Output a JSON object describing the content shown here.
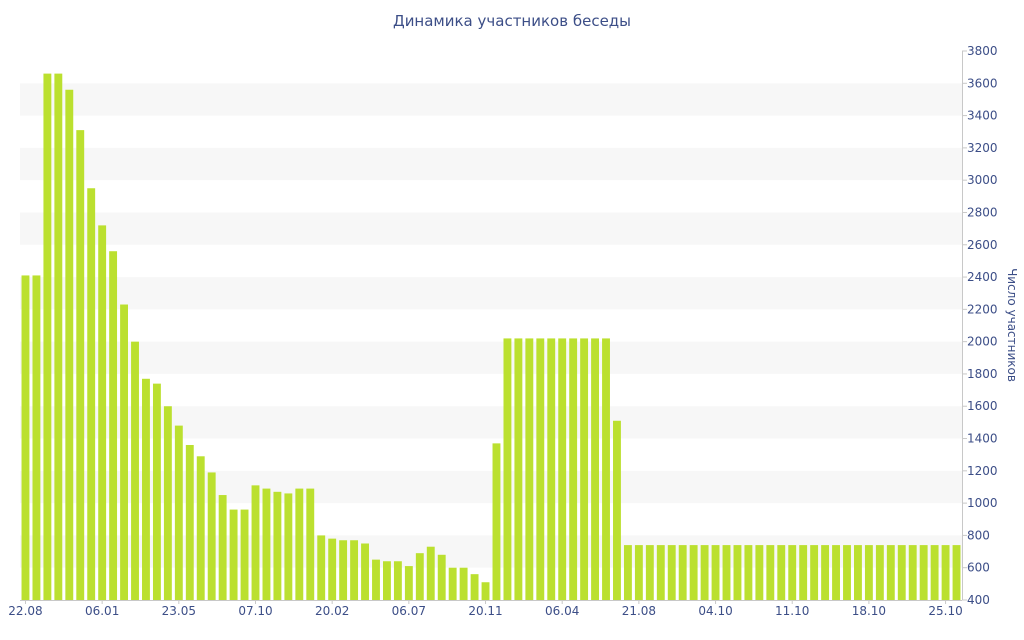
{
  "chart_data": {
    "type": "bar",
    "title": "Динамика участников беседы",
    "ylabel": "Число участников",
    "xlabel": "",
    "ylim": [
      400,
      3800
    ],
    "yticks": [
      400,
      600,
      800,
      1000,
      1200,
      1400,
      1600,
      1800,
      2000,
      2200,
      2400,
      2600,
      2800,
      3000,
      3200,
      3400,
      3600,
      3800
    ],
    "y_axis_position": "right",
    "grid": "alternating horizontal bands",
    "bar_color": "#bbe02f",
    "x_tick_labels": [
      {
        "index": 0,
        "label": "22.08"
      },
      {
        "index": 7,
        "label": "06.01"
      },
      {
        "index": 14,
        "label": "23.05"
      },
      {
        "index": 21,
        "label": "07.10"
      },
      {
        "index": 28,
        "label": "20.02"
      },
      {
        "index": 35,
        "label": "06.07"
      },
      {
        "index": 42,
        "label": "20.11"
      },
      {
        "index": 49,
        "label": "06.04"
      },
      {
        "index": 56,
        "label": "21.08"
      },
      {
        "index": 63,
        "label": "04.10"
      },
      {
        "index": 70,
        "label": "11.10"
      },
      {
        "index": 77,
        "label": "18.10"
      },
      {
        "index": 84,
        "label": "25.10"
      }
    ],
    "values": [
      2410,
      2410,
      3660,
      3660,
      3560,
      3310,
      2950,
      2720,
      2560,
      2230,
      2000,
      1770,
      1740,
      1600,
      1480,
      1360,
      1290,
      1190,
      1050,
      960,
      960,
      1110,
      1090,
      1070,
      1060,
      1090,
      1090,
      800,
      780,
      770,
      770,
      750,
      650,
      640,
      640,
      610,
      690,
      730,
      680,
      600,
      600,
      560,
      510,
      1370,
      2020,
      2020,
      2020,
      2020,
      2020,
      2020,
      2020,
      2020,
      2020,
      2020,
      1510,
      740,
      740,
      740,
      740,
      740,
      740,
      740,
      740,
      740,
      740,
      740,
      740,
      740,
      740,
      740,
      740,
      740,
      740,
      740,
      740,
      740,
      740,
      740,
      740,
      740,
      740,
      740,
      740,
      740,
      740,
      740
    ]
  }
}
